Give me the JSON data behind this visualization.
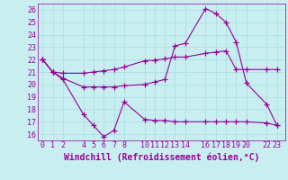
{
  "xlabel": "Windchill (Refroidissement éolien,°C)",
  "bg_color": "#c8eef0",
  "grid_color": "#a8dce0",
  "line_color": "#990099",
  "x_ticks": [
    0,
    1,
    2,
    4,
    5,
    6,
    7,
    8,
    10,
    11,
    12,
    13,
    14,
    16,
    17,
    18,
    19,
    20,
    22,
    23
  ],
  "ylim": [
    15.5,
    26.5
  ],
  "xlim": [
    -0.5,
    23.8
  ],
  "line1_x": [
    0,
    1,
    2,
    4,
    5,
    6,
    7,
    8,
    10,
    11,
    12,
    13,
    14,
    16,
    17,
    18,
    19,
    20,
    22,
    23
  ],
  "line1_y": [
    22.0,
    21.0,
    20.9,
    20.9,
    21.0,
    21.1,
    21.2,
    21.4,
    21.9,
    21.95,
    22.05,
    22.2,
    22.2,
    22.5,
    22.6,
    22.7,
    21.2,
    21.2,
    21.2,
    21.2
  ],
  "line2_x": [
    0,
    1,
    2,
    4,
    5,
    6,
    7,
    8,
    10,
    11,
    12,
    13,
    14,
    16,
    17,
    18,
    19,
    20,
    22,
    23
  ],
  "line2_y": [
    22.0,
    21.0,
    20.5,
    19.8,
    19.8,
    19.8,
    19.8,
    19.9,
    20.0,
    20.2,
    20.4,
    23.1,
    23.3,
    26.1,
    25.7,
    25.0,
    23.4,
    20.1,
    18.4,
    16.7
  ],
  "line3_x": [
    0,
    1,
    2,
    4,
    5,
    6,
    7,
    8,
    10,
    11,
    12,
    13,
    14,
    16,
    17,
    18,
    19,
    20,
    22,
    23
  ],
  "line3_y": [
    22.0,
    21.0,
    20.4,
    17.6,
    16.7,
    15.8,
    16.3,
    18.6,
    17.2,
    17.1,
    17.1,
    17.0,
    17.0,
    17.0,
    17.0,
    17.0,
    17.0,
    17.0,
    16.9,
    16.7
  ],
  "yticks": [
    16,
    17,
    18,
    19,
    20,
    21,
    22,
    23,
    24,
    25,
    26
  ],
  "marker": "+",
  "linewidth": 0.8,
  "markersize": 4,
  "fontsize_ticks": 6,
  "fontsize_xlabel": 7
}
